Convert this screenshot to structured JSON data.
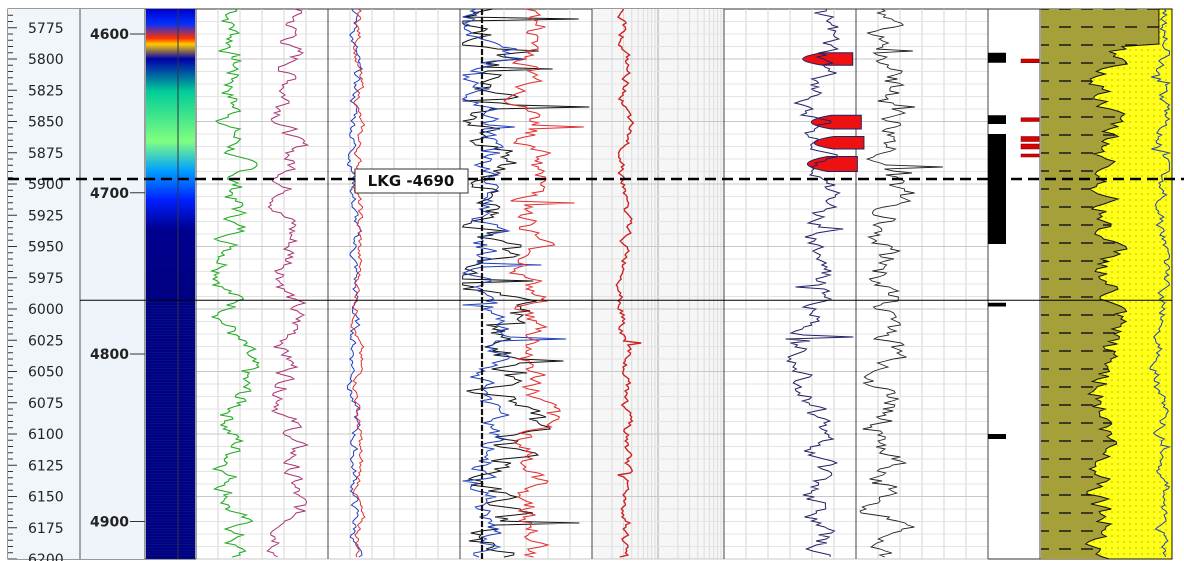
{
  "chart_data": {
    "type": "line",
    "title": "",
    "depth_axis_md": {
      "ticks": [
        5775,
        5800,
        5825,
        5850,
        5875,
        5900,
        5925,
        5950,
        5975,
        6000,
        6025,
        6050,
        6075,
        6100,
        6125,
        6150,
        6175,
        6200
      ],
      "range": [
        5760,
        6200
      ]
    },
    "depth_axis_tvd": {
      "ticks": [
        4600,
        4700,
        4800,
        4900
      ],
      "range_md_equivalent": [
        5760,
        6200
      ],
      "tvd_at_md": [
        [
          5780,
          4600
        ],
        [
          5907,
          4700
        ],
        [
          6036,
          4800
        ],
        [
          6170,
          4900
        ]
      ]
    },
    "marker": {
      "label": "LKG -4690",
      "depth_md": 5896
    },
    "zone_boundary_md": 5993,
    "tracks": [
      {
        "id": "image",
        "kind": "heatmap",
        "colormap": [
          "#000080",
          "#0000ff",
          "#00bfff",
          "#7fff7f",
          "#ffff00",
          "#ff0000"
        ]
      },
      {
        "id": "curves-a",
        "kind": "line",
        "series_colors": [
          "#22aa22",
          "#aa3377"
        ]
      },
      {
        "id": "curves-b",
        "kind": "line",
        "series_colors": [
          "#1f3fbf",
          "#e03030"
        ]
      },
      {
        "id": "curves-c",
        "kind": "line",
        "series_colors": [
          "#111111",
          "#1f3fbf",
          "#e03030"
        ]
      },
      {
        "id": "curve-d",
        "kind": "line",
        "series_colors": [
          "#cc2222"
        ]
      },
      {
        "id": "curve-e",
        "kind": "line",
        "scale": "log",
        "series_colors": [
          "#222266"
        ],
        "fill_color": "#ee1111"
      },
      {
        "id": "curve-f",
        "kind": "line",
        "series_colors": [
          "#222222"
        ]
      },
      {
        "id": "flags",
        "kind": "flag",
        "colors": [
          "#000000",
          "#dd0000"
        ],
        "black_intervals_md": [
          [
            5795,
            5803
          ],
          [
            5845,
            5852
          ],
          [
            5860,
            5948
          ],
          [
            5995,
            5998
          ],
          [
            6100,
            6104
          ]
        ],
        "red_intervals_md": [
          [
            5800,
            5803
          ],
          [
            5847,
            5850
          ],
          [
            5862,
            5866
          ],
          [
            5868,
            5872
          ],
          [
            5876,
            5878
          ]
        ]
      },
      {
        "id": "lithology",
        "kind": "area",
        "colors": [
          "#a6a03a",
          "#ffff1a",
          "#1f3fbf"
        ]
      }
    ],
    "grid": true
  }
}
